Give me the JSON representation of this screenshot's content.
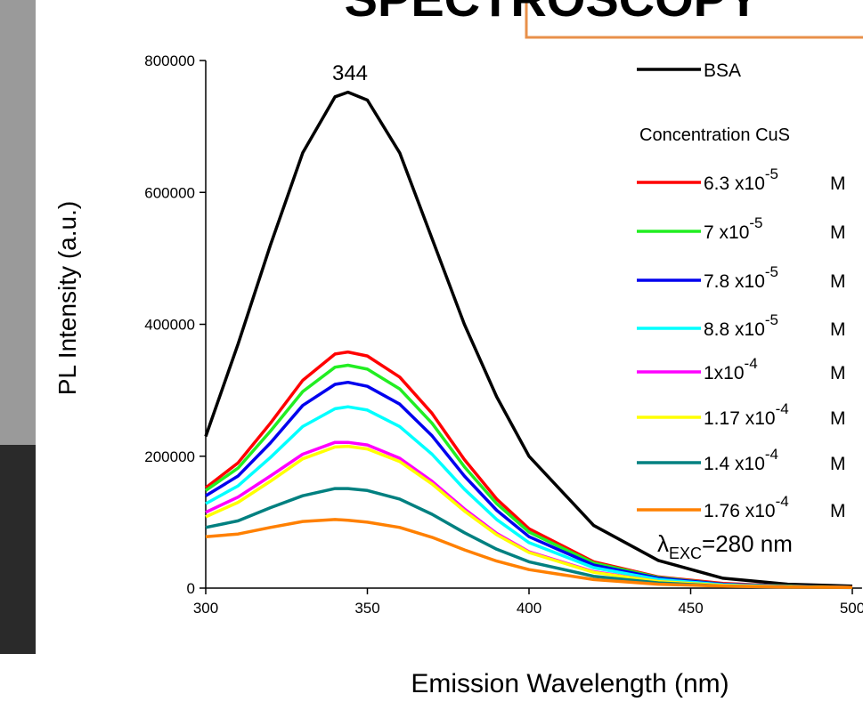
{
  "header": {
    "title": "SPECTROSCOPY"
  },
  "chart_data": {
    "type": "line",
    "xlabel": "Emission Wavelength (nm)",
    "ylabel": "PL Intensity (a.u.)",
    "x": [
      300,
      310,
      320,
      330,
      340,
      344,
      350,
      360,
      370,
      380,
      390,
      400,
      420,
      440,
      460,
      480,
      500
    ],
    "xlim": [
      300,
      503
    ],
    "xticks": [
      300,
      350,
      400,
      450,
      500
    ],
    "ylim": [
      0,
      800000
    ],
    "yticks": [
      0,
      200000,
      400000,
      600000,
      800000
    ],
    "legend_title": "Concentration CuS",
    "annotations": [
      {
        "text": "344"
      },
      {
        "text": "λ",
        "sub": "EXC",
        "rest": "=280 nm"
      }
    ],
    "series": [
      {
        "name": "BSA",
        "color": "#000000",
        "values": [
          230000,
          370000,
          520000,
          660000,
          745000,
          752000,
          740000,
          660000,
          530000,
          400000,
          290000,
          200000,
          95000,
          42000,
          15000,
          6000,
          3000
        ]
      },
      {
        "name": "6.3 x10",
        "exponent": "-5",
        "unit": "M",
        "color": "#ff0000",
        "values": [
          152000,
          190000,
          250000,
          315000,
          355000,
          358000,
          352000,
          320000,
          265000,
          195000,
          135000,
          90000,
          40000,
          17000,
          7000,
          3000,
          1000
        ]
      },
      {
        "name": "7 x10",
        "exponent": "-5",
        "unit": "M",
        "color": "#22ee22",
        "values": [
          148000,
          182000,
          238000,
          298000,
          335000,
          338000,
          332000,
          302000,
          250000,
          184000,
          128000,
          85000,
          38000,
          16000,
          6000,
          3000,
          1000
        ]
      },
      {
        "name": "7.8 x10",
        "exponent": "-5",
        "unit": "M",
        "color": "#0000ee",
        "values": [
          140000,
          170000,
          220000,
          277000,
          309000,
          312000,
          306000,
          279000,
          231000,
          170000,
          118000,
          78000,
          35000,
          15000,
          6000,
          2500,
          1000
        ]
      },
      {
        "name": "8.8 x10",
        "exponent": "-5",
        "unit": "M",
        "color": "#00ffff",
        "values": [
          128000,
          155000,
          198000,
          245000,
          272000,
          275000,
          270000,
          245000,
          203000,
          150000,
          104000,
          69000,
          31000,
          13000,
          5000,
          2000,
          1000
        ]
      },
      {
        "name": "1x10",
        "exponent": "-4",
        "unit": "M",
        "color": "#ff00ff",
        "values": [
          115000,
          138000,
          170000,
          203000,
          221000,
          221000,
          217000,
          197000,
          162000,
          120000,
          83000,
          55000,
          25000,
          10000,
          4000,
          2000,
          1000
        ]
      },
      {
        "name": "1.17 x10",
        "exponent": "-4",
        "unit": "M",
        "color": "#ffff00",
        "values": [
          108000,
          130000,
          162000,
          196000,
          214000,
          215000,
          211000,
          192000,
          158000,
          117000,
          81000,
          54000,
          24000,
          10000,
          4000,
          2000,
          1000
        ]
      },
      {
        "name": "1.4 x10",
        "exponent": "-4",
        "unit": "M",
        "color": "#008080",
        "values": [
          92000,
          102000,
          122000,
          140000,
          151000,
          151000,
          148000,
          135000,
          112000,
          84000,
          59000,
          40000,
          18000,
          8000,
          3000,
          1500,
          800
        ]
      },
      {
        "name": "1.76 x10",
        "exponent": "-4",
        "unit": "M",
        "color": "#ff8000",
        "values": [
          78000,
          82000,
          92000,
          101000,
          104000,
          103000,
          100000,
          92000,
          77000,
          58000,
          41000,
          28000,
          13000,
          6000,
          3000,
          1500,
          1000
        ]
      }
    ]
  }
}
